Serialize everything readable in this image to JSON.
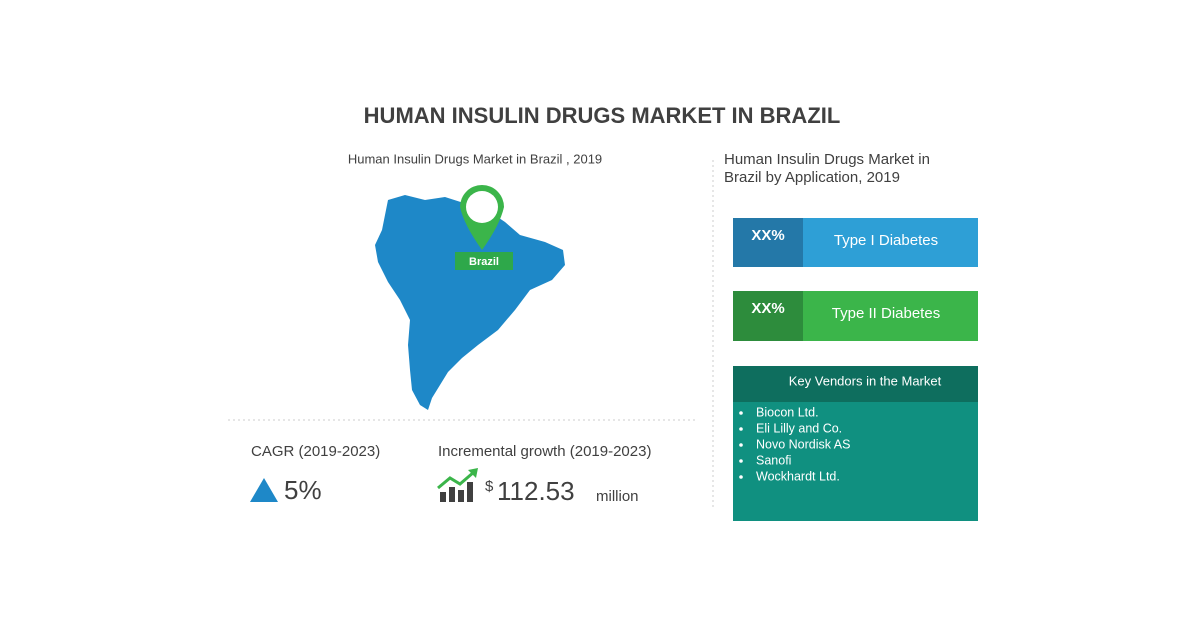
{
  "header": {
    "title": "HUMAN INSULIN DRUGS MARKET IN BRAZIL"
  },
  "map": {
    "caption": "Human Insulin Drugs Market in Brazil , 2019",
    "label": "Brazil"
  },
  "cagr": {
    "label": "CAGR (2019-2023)",
    "value": "5%"
  },
  "growth": {
    "label": "Incremental growth (2019-2023)",
    "currency": "$",
    "value": "112.53",
    "unit": "million"
  },
  "application": {
    "heading_lines": [
      "Human Insulin Drugs Market in",
      "Brazil by Application, 2019"
    ],
    "items": [
      {
        "share": "XX%",
        "name": "Type I Diabetes"
      },
      {
        "share": "XX%",
        "name": "Type II Diabetes"
      }
    ]
  },
  "vendors": {
    "title": "Key Vendors in the Market",
    "list": [
      "Biocon Ltd.",
      "Eli Lilly and Co.",
      "Novo Nordisk AS",
      "Sanofi",
      "Wockhardt Ltd."
    ]
  }
}
